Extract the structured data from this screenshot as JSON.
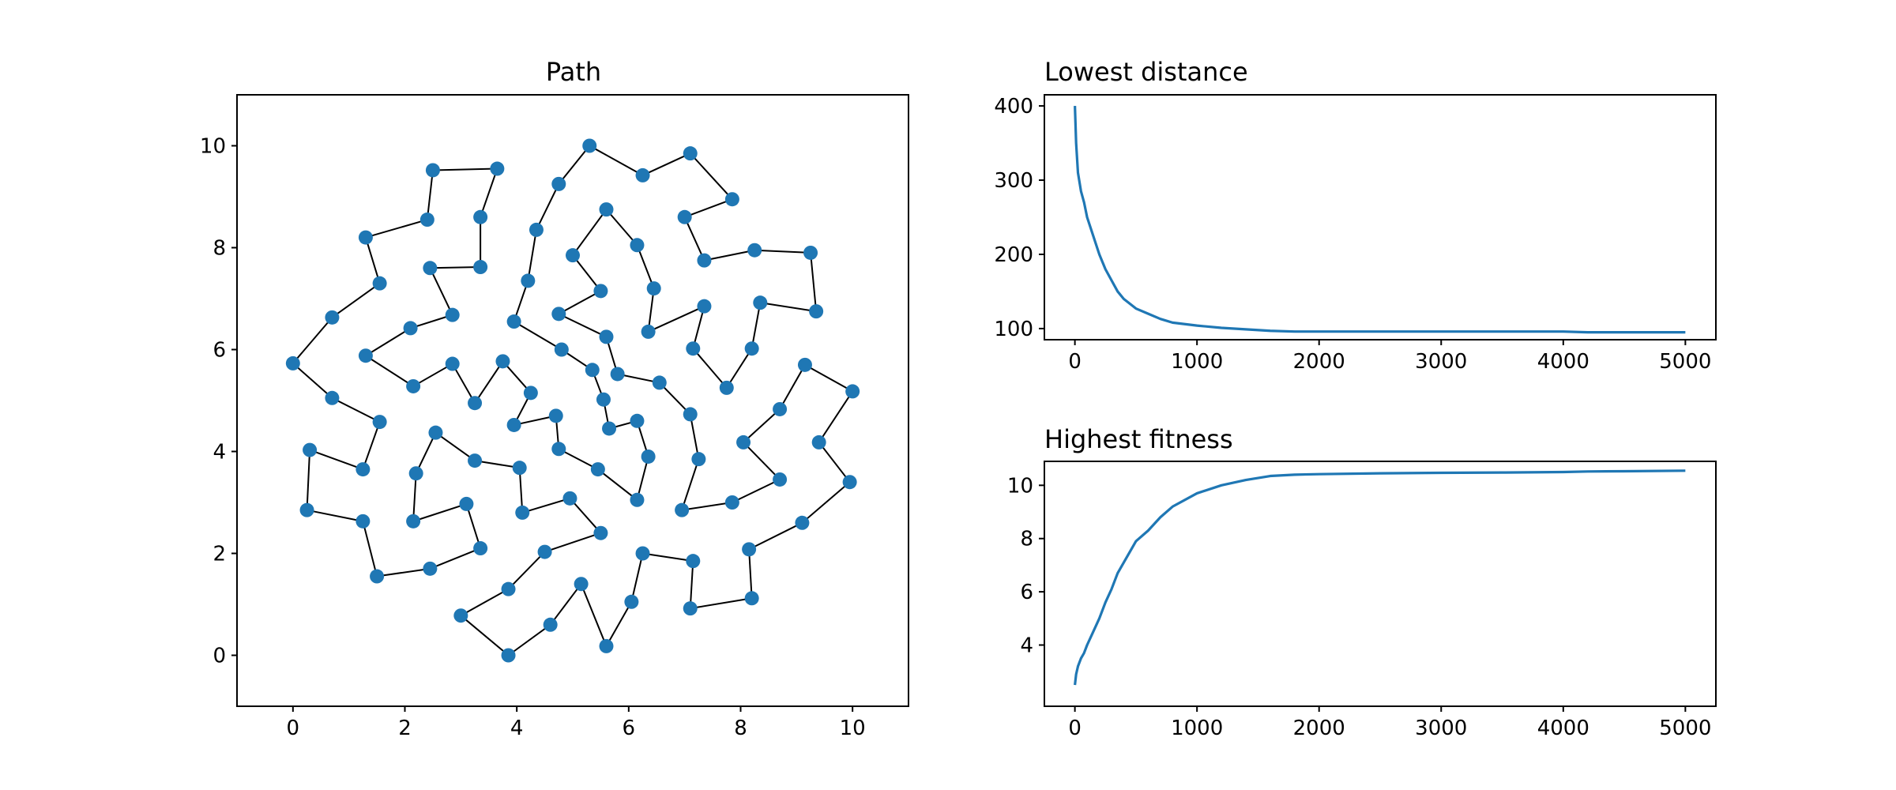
{
  "colors": {
    "series": "#1f77b4",
    "edge": "#000000"
  },
  "chart_data": [
    {
      "type": "scatter",
      "title": "Path",
      "xlim": [
        -1,
        11
      ],
      "ylim": [
        -1,
        11
      ],
      "xticks": [
        0,
        2,
        4,
        6,
        8,
        10
      ],
      "yticks": [
        0,
        2,
        4,
        6,
        8,
        10
      ],
      "grid": false,
      "connected_as_closed_tour": true,
      "tour": [
        [
          3.85,
          0.0
        ],
        [
          4.6,
          0.6
        ],
        [
          5.15,
          1.4
        ],
        [
          5.6,
          0.18
        ],
        [
          6.05,
          1.05
        ],
        [
          6.25,
          2.0
        ],
        [
          7.15,
          1.85
        ],
        [
          7.1,
          0.92
        ],
        [
          8.2,
          1.12
        ],
        [
          8.15,
          2.08
        ],
        [
          9.1,
          2.6
        ],
        [
          9.95,
          3.4
        ],
        [
          9.4,
          4.18
        ],
        [
          10.0,
          5.18
        ],
        [
          9.15,
          5.7
        ],
        [
          8.7,
          4.83
        ],
        [
          8.05,
          4.18
        ],
        [
          8.7,
          3.45
        ],
        [
          7.85,
          3.0
        ],
        [
          6.95,
          2.85
        ],
        [
          7.25,
          3.85
        ],
        [
          7.1,
          4.73
        ],
        [
          6.55,
          5.35
        ],
        [
          5.8,
          5.52
        ],
        [
          5.6,
          6.25
        ],
        [
          4.75,
          6.7
        ],
        [
          5.5,
          7.15
        ],
        [
          5.0,
          7.85
        ],
        [
          5.6,
          8.75
        ],
        [
          6.15,
          8.05
        ],
        [
          6.45,
          7.2
        ],
        [
          6.35,
          6.35
        ],
        [
          7.35,
          6.85
        ],
        [
          7.15,
          6.02
        ],
        [
          7.75,
          5.25
        ],
        [
          8.2,
          6.02
        ],
        [
          8.35,
          6.92
        ],
        [
          9.35,
          6.75
        ],
        [
          9.25,
          7.9
        ],
        [
          8.25,
          7.95
        ],
        [
          7.35,
          7.75
        ],
        [
          7.0,
          8.6
        ],
        [
          7.85,
          8.95
        ],
        [
          7.1,
          9.85
        ],
        [
          6.25,
          9.42
        ],
        [
          5.3,
          10.0
        ],
        [
          4.75,
          9.25
        ],
        [
          4.35,
          8.35
        ],
        [
          4.2,
          7.35
        ],
        [
          3.95,
          6.55
        ],
        [
          4.8,
          6.0
        ],
        [
          5.35,
          5.6
        ],
        [
          5.55,
          5.02
        ],
        [
          5.65,
          4.45
        ],
        [
          6.15,
          4.6
        ],
        [
          6.35,
          3.9
        ],
        [
          6.15,
          3.05
        ],
        [
          5.45,
          3.65
        ],
        [
          4.75,
          4.05
        ],
        [
          4.7,
          4.7
        ],
        [
          3.95,
          4.52
        ],
        [
          4.25,
          5.15
        ],
        [
          3.75,
          5.77
        ],
        [
          3.25,
          4.95
        ],
        [
          2.85,
          5.72
        ],
        [
          2.15,
          5.28
        ],
        [
          1.3,
          5.88
        ],
        [
          2.1,
          6.42
        ],
        [
          2.85,
          6.68
        ],
        [
          2.45,
          7.6
        ],
        [
          3.35,
          7.62
        ],
        [
          3.35,
          8.6
        ],
        [
          3.65,
          9.55
        ],
        [
          2.5,
          9.52
        ],
        [
          2.4,
          8.55
        ],
        [
          1.3,
          8.2
        ],
        [
          1.55,
          7.3
        ],
        [
          0.7,
          6.63
        ],
        [
          0.0,
          5.73
        ],
        [
          0.7,
          5.05
        ],
        [
          1.55,
          4.58
        ],
        [
          1.25,
          3.65
        ],
        [
          0.3,
          4.03
        ],
        [
          0.25,
          2.85
        ],
        [
          1.25,
          2.63
        ],
        [
          1.5,
          1.55
        ],
        [
          2.45,
          1.7
        ],
        [
          3.35,
          2.1
        ],
        [
          3.1,
          2.97
        ],
        [
          2.15,
          2.63
        ],
        [
          2.2,
          3.57
        ],
        [
          2.55,
          4.37
        ],
        [
          3.25,
          3.82
        ],
        [
          4.05,
          3.68
        ],
        [
          4.1,
          2.8
        ],
        [
          4.95,
          3.08
        ],
        [
          5.5,
          2.4
        ],
        [
          4.5,
          2.03
        ],
        [
          3.85,
          1.3
        ],
        [
          3.0,
          0.78
        ]
      ]
    },
    {
      "type": "line",
      "title": "Lowest distance",
      "xlim": [
        -250,
        5250
      ],
      "ylim": [
        85,
        415
      ],
      "xticks": [
        0,
        1000,
        2000,
        3000,
        4000,
        5000
      ],
      "yticks": [
        100,
        200,
        300,
        400
      ],
      "grid": false,
      "x": [
        0,
        10,
        25,
        50,
        75,
        100,
        150,
        200,
        250,
        300,
        350,
        400,
        500,
        600,
        700,
        800,
        1000,
        1200,
        1400,
        1600,
        1800,
        2000,
        2500,
        3000,
        3500,
        4000,
        4200,
        4500,
        5000
      ],
      "values": [
        400,
        350,
        310,
        285,
        270,
        250,
        225,
        200,
        180,
        165,
        150,
        140,
        127,
        120,
        113,
        108,
        104,
        101,
        99,
        97,
        96,
        96,
        96,
        96,
        96,
        96,
        95,
        95,
        95
      ]
    },
    {
      "type": "line",
      "title": "Highest fitness",
      "xlim": [
        -250,
        5250
      ],
      "ylim": [
        1.7,
        10.9
      ],
      "xticks": [
        0,
        1000,
        2000,
        3000,
        4000,
        5000
      ],
      "yticks": [
        4,
        6,
        8,
        10
      ],
      "grid": false,
      "x": [
        0,
        10,
        25,
        50,
        75,
        100,
        150,
        200,
        250,
        300,
        350,
        400,
        500,
        600,
        700,
        800,
        1000,
        1200,
        1400,
        1600,
        1800,
        2000,
        2500,
        3000,
        3500,
        4000,
        4200,
        4500,
        5000
      ],
      "values": [
        2.5,
        2.9,
        3.2,
        3.5,
        3.7,
        4.0,
        4.5,
        5.0,
        5.6,
        6.1,
        6.7,
        7.1,
        7.9,
        8.3,
        8.8,
        9.2,
        9.7,
        10.0,
        10.2,
        10.35,
        10.4,
        10.42,
        10.45,
        10.47,
        10.48,
        10.5,
        10.52,
        10.53,
        10.55
      ]
    }
  ]
}
